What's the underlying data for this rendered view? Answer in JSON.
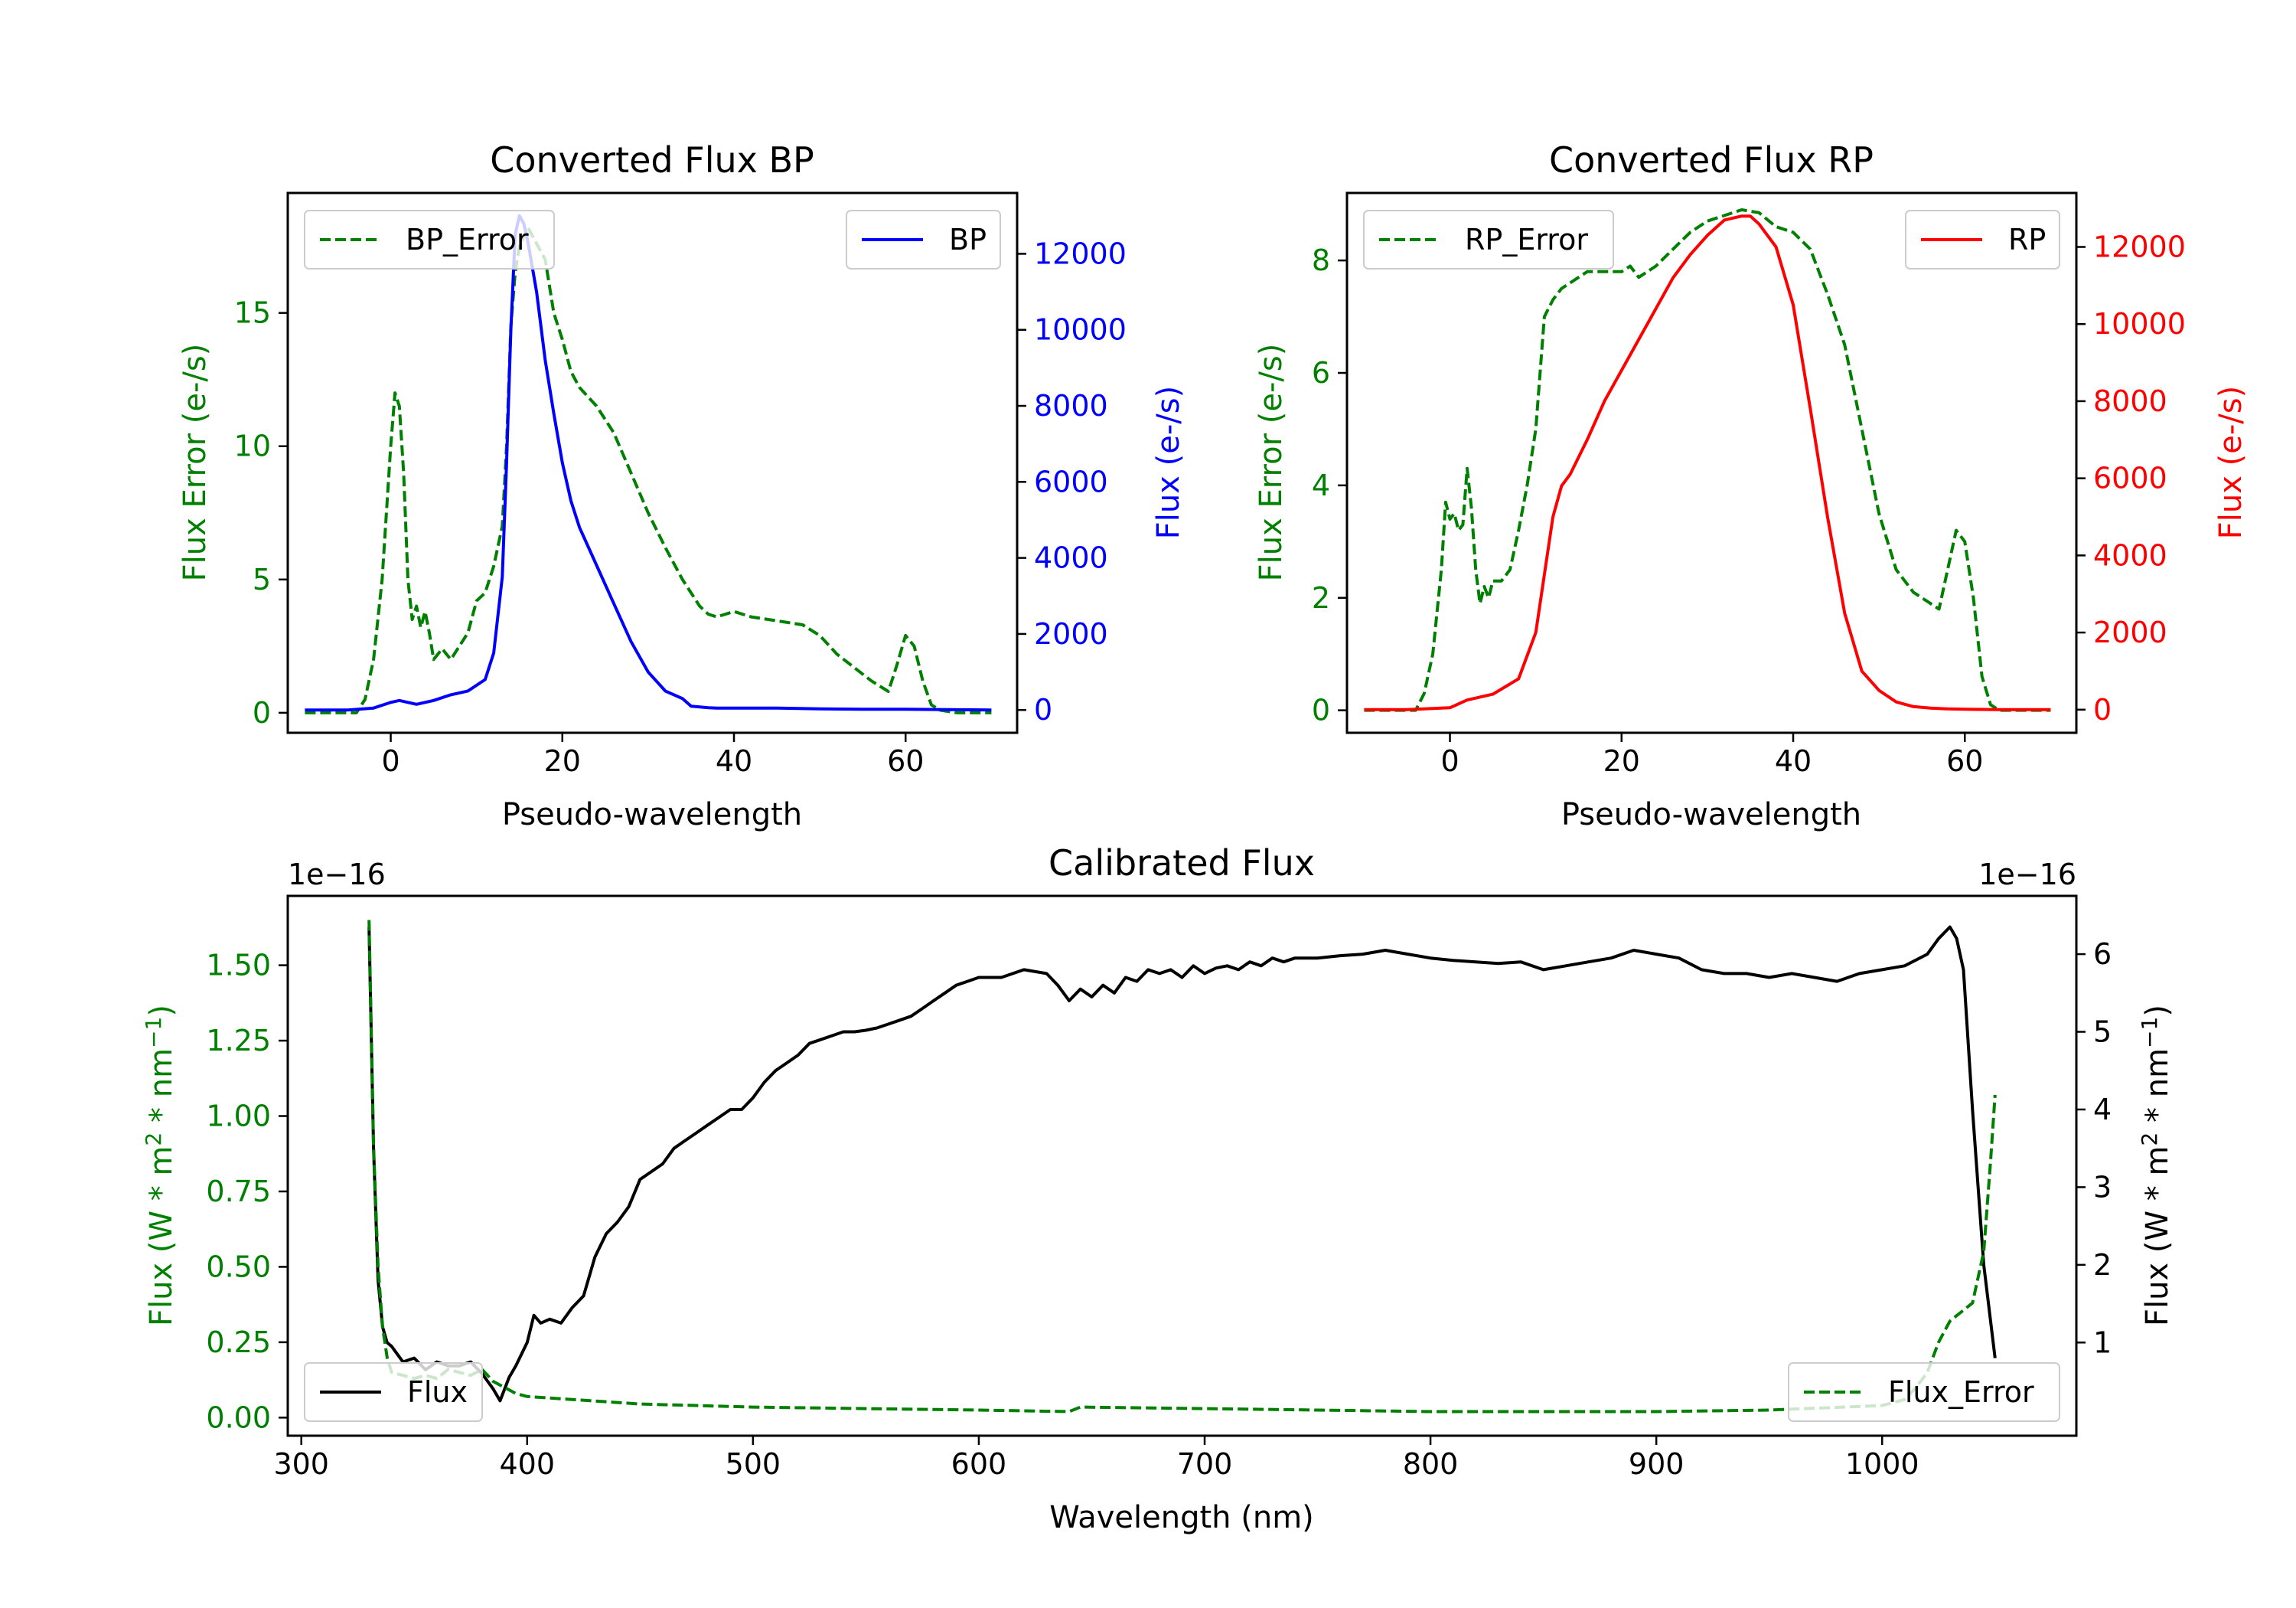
{
  "chart_data": [
    {
      "id": "bp",
      "type": "line",
      "title": "Converted Flux BP",
      "xlabel": "Pseudo-wavelength",
      "xlim": [
        -12,
        73
      ],
      "xticks": [
        0,
        20,
        40,
        60
      ],
      "left_axis": {
        "label": "Flux Error (e-/s)",
        "color": "#008000",
        "ylim": [
          -0.75,
          19.5
        ],
        "ticks": [
          0,
          5,
          10,
          15
        ]
      },
      "right_axis": {
        "label": "Flux (e-/s)",
        "color": "#0000ff",
        "ylim": [
          -600,
          13600
        ],
        "ticks": [
          0,
          2000,
          4000,
          6000,
          8000,
          10000,
          12000
        ]
      },
      "series": [
        {
          "name": "BP_Error",
          "axis": "left",
          "color": "#008000",
          "dash": true,
          "x": [
            -10,
            -4,
            -3,
            -2,
            -1,
            0,
            0.5,
            1,
            1.5,
            2,
            2.5,
            3,
            3.5,
            4,
            4.5,
            5,
            6,
            7,
            8,
            9,
            10,
            11,
            12,
            13,
            13.5,
            14,
            14.5,
            15,
            16,
            17,
            18,
            19,
            20,
            21,
            22,
            24,
            26,
            28,
            30,
            32,
            34,
            36,
            37,
            38,
            39,
            40,
            42,
            44,
            46,
            48,
            50,
            52,
            54,
            56,
            57,
            58,
            59,
            60,
            61,
            62,
            63,
            64,
            66,
            68,
            70
          ],
          "y": [
            0.0,
            0.0,
            0.5,
            2.0,
            5.0,
            10.0,
            12.0,
            11.5,
            9.0,
            5.0,
            3.5,
            4.0,
            3.2,
            3.8,
            3.0,
            2.0,
            2.4,
            2.0,
            2.5,
            3.0,
            4.2,
            4.5,
            5.5,
            7.0,
            10.0,
            14.5,
            16.5,
            17.5,
            18.2,
            17.6,
            17.0,
            15.0,
            14.0,
            12.8,
            12.2,
            11.5,
            10.5,
            9.0,
            7.5,
            6.2,
            5.0,
            4.0,
            3.7,
            3.6,
            3.7,
            3.8,
            3.6,
            3.5,
            3.4,
            3.3,
            2.9,
            2.2,
            1.7,
            1.2,
            1.0,
            0.8,
            1.8,
            2.9,
            2.5,
            1.2,
            0.3,
            0.1,
            0.0,
            0.0,
            0.0
          ]
        },
        {
          "name": "BP",
          "axis": "right",
          "color": "#0000ff",
          "dash": false,
          "x": [
            -10,
            -5,
            -2,
            0,
            1,
            3,
            5,
            7,
            9,
            11,
            12,
            13,
            13.5,
            14,
            14.5,
            15,
            15.5,
            16,
            17,
            18,
            19,
            20,
            21,
            22,
            24,
            26,
            28,
            30,
            32,
            34,
            35,
            36,
            37,
            38,
            40,
            45,
            50,
            55,
            60,
            65,
            70
          ],
          "y": [
            0,
            0,
            50,
            200,
            250,
            150,
            250,
            400,
            500,
            800,
            1500,
            3500,
            6500,
            10000,
            12500,
            13000,
            12800,
            12300,
            11000,
            9200,
            7800,
            6500,
            5500,
            4800,
            3800,
            2800,
            1800,
            1000,
            500,
            300,
            100,
            80,
            60,
            50,
            50,
            50,
            30,
            20,
            20,
            10,
            0
          ]
        }
      ],
      "legend": {
        "BP_Error": "upper-left",
        "BP": "upper-right"
      }
    },
    {
      "id": "rp",
      "type": "line",
      "title": "Converted Flux RP",
      "xlabel": "Pseudo-wavelength",
      "xlim": [
        -12,
        73
      ],
      "xticks": [
        0,
        20,
        40,
        60
      ],
      "left_axis": {
        "label": "Flux Error (e-/s)",
        "color": "#008000",
        "ylim": [
          -0.4,
          9.2
        ],
        "ticks": [
          0,
          2,
          4,
          6,
          8
        ]
      },
      "right_axis": {
        "label": "Flux (e-/s)",
        "color": "#ff0000",
        "ylim": [
          -600,
          13400
        ],
        "ticks": [
          0,
          2000,
          4000,
          6000,
          8000,
          10000,
          12000
        ]
      },
      "series": [
        {
          "name": "RP_Error",
          "axis": "left",
          "color": "#008000",
          "dash": true,
          "x": [
            -10,
            -4,
            -3,
            -2,
            -1,
            -0.5,
            0,
            0.5,
            1,
            1.5,
            2,
            2.5,
            3,
            3.5,
            4,
            4.5,
            5,
            6,
            7,
            8,
            9,
            10,
            11,
            12,
            13,
            14,
            16,
            18,
            20,
            21,
            22,
            23,
            24,
            26,
            28,
            30,
            32,
            34,
            36,
            38,
            40,
            42,
            43,
            44,
            46,
            48,
            50,
            52,
            54,
            55,
            56,
            57,
            58,
            59,
            60,
            61,
            62,
            63,
            64,
            66,
            68,
            70
          ],
          "y": [
            0,
            0,
            0.3,
            1.0,
            2.5,
            3.7,
            3.4,
            3.5,
            3.2,
            3.3,
            4.3,
            3.6,
            2.5,
            1.9,
            2.2,
            2.0,
            2.3,
            2.3,
            2.5,
            3.2,
            4.0,
            5.0,
            7.0,
            7.3,
            7.5,
            7.6,
            7.8,
            7.8,
            7.8,
            7.9,
            7.7,
            7.8,
            7.9,
            8.2,
            8.5,
            8.7,
            8.8,
            8.9,
            8.85,
            8.6,
            8.5,
            8.2,
            7.8,
            7.4,
            6.5,
            5.0,
            3.5,
            2.5,
            2.1,
            2.0,
            1.9,
            1.8,
            2.5,
            3.2,
            3.0,
            2.0,
            0.6,
            0.1,
            0,
            0,
            0,
            0
          ]
        },
        {
          "name": "RP",
          "axis": "right",
          "color": "#ff0000",
          "dash": false,
          "x": [
            -10,
            -5,
            0,
            2,
            5,
            8,
            10,
            11,
            12,
            13,
            14,
            16,
            18,
            20,
            22,
            24,
            26,
            28,
            30,
            32,
            34,
            35,
            36,
            38,
            40,
            42,
            44,
            46,
            48,
            50,
            52,
            54,
            56,
            58,
            60,
            62,
            64,
            66,
            68,
            70
          ],
          "y": [
            0,
            0,
            50,
            250,
            400,
            800,
            2000,
            3500,
            5000,
            5800,
            6100,
            7000,
            8000,
            8800,
            9600,
            10400,
            11200,
            11800,
            12300,
            12700,
            12800,
            12800,
            12600,
            12000,
            10500,
            7800,
            5000,
            2500,
            1000,
            500,
            200,
            80,
            40,
            20,
            10,
            5,
            0,
            0,
            0,
            0
          ]
        }
      ],
      "legend": {
        "RP_Error": "upper-left",
        "RP": "upper-right"
      }
    },
    {
      "id": "cal",
      "type": "line",
      "title": "Calibrated Flux",
      "xlabel": "Wavelength (nm)",
      "xlim": [
        294,
        1086
      ],
      "xticks": [
        300,
        400,
        500,
        600,
        700,
        800,
        900,
        1000
      ],
      "left_axis": {
        "label_main": "Flux (W * m",
        "label_sup1": "2",
        "label_mid": " * nm",
        "label_sup2": "−1",
        "label_end": ")",
        "color": "#008000",
        "ylim": [
          -0.06,
          1.73
        ],
        "ticks": [
          0.0,
          0.25,
          0.5,
          0.75,
          1.0,
          1.25,
          1.5
        ],
        "tick_labels": [
          "0.00",
          "0.25",
          "0.50",
          "0.75",
          "1.00",
          "1.25",
          "1.50"
        ],
        "offset_text": "1e−16"
      },
      "right_axis": {
        "label_main": "Flux (W * m",
        "label_sup1": "2",
        "label_mid": " * nm",
        "label_sup2": "−1",
        "label_end": ")",
        "color": "#000000",
        "ylim": [
          -0.2,
          6.75
        ],
        "ticks": [
          1,
          2,
          3,
          4,
          5,
          6
        ],
        "offset_text": "1e−16"
      },
      "series": [
        {
          "name": "Flux",
          "axis": "right",
          "color": "#000000",
          "dash": false,
          "x": [
            330,
            332,
            334,
            336,
            338,
            340,
            345,
            350,
            355,
            360,
            365,
            370,
            375,
            380,
            385,
            388,
            392,
            395,
            400,
            403,
            406,
            410,
            415,
            420,
            425,
            430,
            435,
            440,
            445,
            450,
            455,
            460,
            465,
            470,
            475,
            480,
            485,
            490,
            495,
            500,
            505,
            510,
            515,
            520,
            525,
            530,
            535,
            540,
            545,
            550,
            555,
            560,
            565,
            570,
            575,
            580,
            585,
            590,
            595,
            600,
            610,
            620,
            630,
            635,
            640,
            645,
            650,
            655,
            660,
            665,
            670,
            675,
            680,
            685,
            690,
            695,
            700,
            705,
            710,
            715,
            720,
            725,
            730,
            735,
            740,
            750,
            760,
            770,
            780,
            790,
            800,
            810,
            820,
            830,
            840,
            850,
            860,
            870,
            880,
            890,
            900,
            910,
            920,
            930,
            940,
            950,
            960,
            970,
            980,
            990,
            1000,
            1010,
            1020,
            1025,
            1030,
            1033,
            1036,
            1040,
            1045,
            1050
          ],
          "y": [
            6.35,
            3.5,
            1.8,
            1.2,
            1.0,
            0.95,
            0.75,
            0.8,
            0.65,
            0.75,
            0.7,
            0.7,
            0.75,
            0.6,
            0.4,
            0.25,
            0.55,
            0.7,
            1.0,
            1.35,
            1.25,
            1.3,
            1.25,
            1.45,
            1.6,
            2.1,
            2.4,
            2.55,
            2.75,
            3.1,
            3.2,
            3.3,
            3.5,
            3.6,
            3.7,
            3.8,
            3.9,
            4.0,
            4.0,
            4.15,
            4.35,
            4.5,
            4.6,
            4.7,
            4.85,
            4.9,
            4.95,
            5.0,
            5.0,
            5.02,
            5.05,
            5.1,
            5.15,
            5.2,
            5.3,
            5.4,
            5.5,
            5.6,
            5.65,
            5.7,
            5.7,
            5.8,
            5.75,
            5.6,
            5.4,
            5.55,
            5.45,
            5.6,
            5.5,
            5.7,
            5.65,
            5.8,
            5.75,
            5.8,
            5.7,
            5.85,
            5.75,
            5.82,
            5.85,
            5.8,
            5.9,
            5.85,
            5.95,
            5.9,
            5.95,
            5.95,
            5.98,
            6.0,
            6.05,
            6.0,
            5.95,
            5.92,
            5.9,
            5.88,
            5.9,
            5.8,
            5.85,
            5.9,
            5.95,
            6.05,
            6.0,
            5.95,
            5.8,
            5.75,
            5.75,
            5.7,
            5.75,
            5.7,
            5.65,
            5.75,
            5.8,
            5.85,
            6.0,
            6.2,
            6.35,
            6.2,
            5.8,
            4.0,
            2.0,
            0.8
          ]
        },
        {
          "name": "Flux_Error",
          "axis": "left",
          "color": "#008000",
          "dash": true,
          "x": [
            330,
            332,
            334,
            336,
            338,
            340,
            345,
            350,
            355,
            360,
            365,
            370,
            375,
            380,
            385,
            390,
            395,
            400,
            420,
            450,
            500,
            550,
            600,
            640,
            645,
            700,
            750,
            800,
            900,
            950,
            1000,
            1010,
            1015,
            1020,
            1025,
            1030,
            1035,
            1040,
            1045,
            1048,
            1050
          ],
          "y": [
            1.65,
            0.9,
            0.5,
            0.3,
            0.2,
            0.15,
            0.14,
            0.13,
            0.14,
            0.13,
            0.16,
            0.15,
            0.14,
            0.16,
            0.12,
            0.1,
            0.08,
            0.07,
            0.06,
            0.045,
            0.035,
            0.03,
            0.025,
            0.02,
            0.035,
            0.03,
            0.025,
            0.02,
            0.02,
            0.025,
            0.04,
            0.06,
            0.1,
            0.15,
            0.25,
            0.32,
            0.35,
            0.38,
            0.55,
            0.85,
            1.07
          ]
        }
      ],
      "legend": {
        "Flux": "lower-left",
        "Flux_Error": "lower-right"
      }
    }
  ]
}
